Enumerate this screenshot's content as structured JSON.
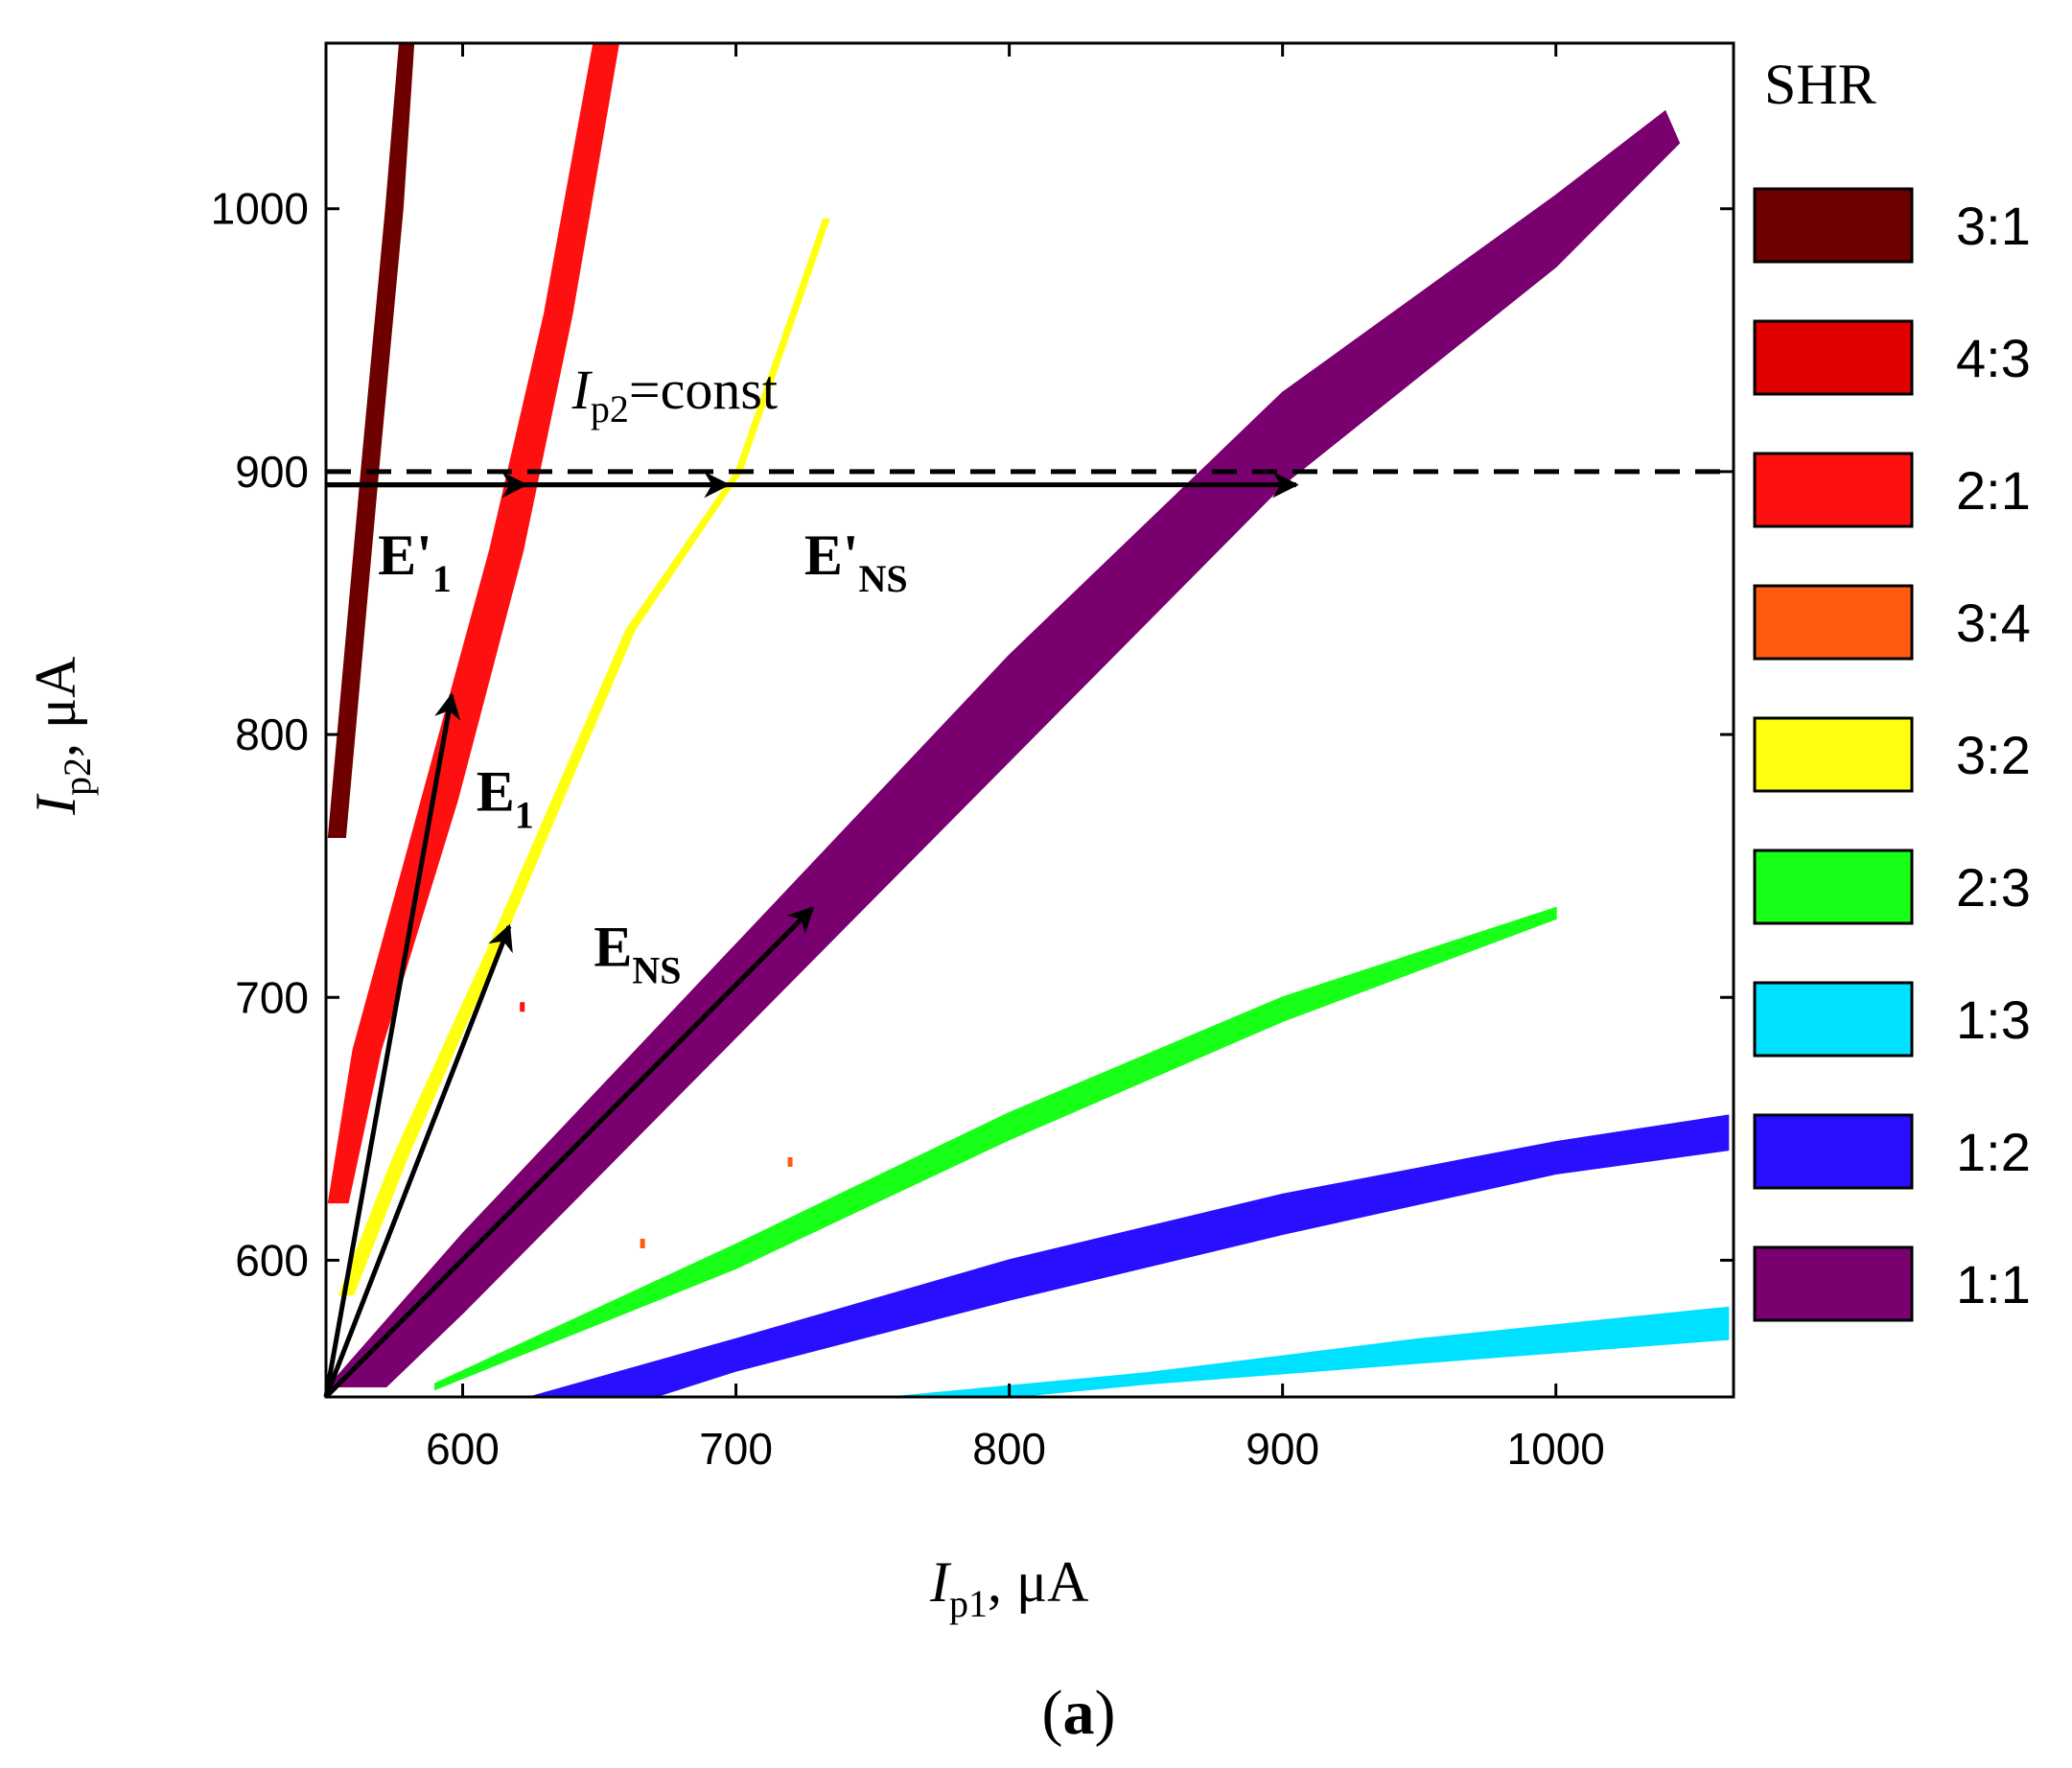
{
  "chart_data": {
    "type": "heatmap",
    "title": "",
    "panel_label": {
      "open": "(",
      "letter": "a",
      "close": ")"
    },
    "xlabel": {
      "var": "I",
      "sub": "p1",
      "unit": ", μA"
    },
    "ylabel": {
      "var": "I",
      "sub": "p2",
      "unit": ", μA"
    },
    "xlim": [
      550,
      1065
    ],
    "ylim": [
      548,
      1063
    ],
    "xticks": [
      600,
      700,
      800,
      900,
      1000
    ],
    "yticks": [
      600,
      700,
      800,
      900,
      1000
    ],
    "legend": {
      "title": "SHR",
      "position": "right",
      "entries": [
        {
          "label": "3:1",
          "color": "#6e0000"
        },
        {
          "label": "4:3",
          "color": "#e00000"
        },
        {
          "label": "2:1",
          "color": "#ff1010"
        },
        {
          "label": "3:4",
          "color": "#ff5a10"
        },
        {
          "label": "3:2",
          "color": "#ffff10"
        },
        {
          "label": "2:3",
          "color": "#18ff18"
        },
        {
          "label": "1:3",
          "color": "#00e0ff"
        },
        {
          "label": "1:2",
          "color": "#2810ff"
        },
        {
          "label": "1:1",
          "color": "#7a0070"
        }
      ]
    },
    "regions": [
      {
        "ratio": "3:1",
        "color": "#6e0000",
        "upper": [
          [
            551,
            761
          ],
          [
            563,
            900
          ],
          [
            572,
            1000
          ],
          [
            577,
            1063
          ]
        ],
        "lower": [
          [
            582,
            1063
          ],
          [
            578,
            1000
          ],
          [
            569,
            900
          ],
          [
            557,
            761
          ]
        ]
      },
      {
        "ratio": "2:1",
        "color": "#ff1010",
        "upper": [
          [
            551,
            622
          ],
          [
            560,
            680
          ],
          [
            585,
            775
          ],
          [
            610,
            870
          ],
          [
            630,
            960
          ],
          [
            648,
            1063
          ]
        ],
        "lower": [
          [
            657,
            1063
          ],
          [
            640,
            960
          ],
          [
            622,
            870
          ],
          [
            598,
            775
          ],
          [
            570,
            680
          ],
          [
            558,
            622
          ]
        ]
      },
      {
        "ratio": "3:2",
        "color": "#ffff10",
        "upper": [
          [
            555,
            587
          ],
          [
            575,
            640
          ],
          [
            610,
            720
          ],
          [
            660,
            840
          ],
          [
            700,
            900
          ],
          [
            732,
            996
          ]
        ],
        "lower": [
          [
            734,
            996
          ],
          [
            702,
            900
          ],
          [
            663,
            840
          ],
          [
            614,
            720
          ],
          [
            580,
            640
          ],
          [
            560,
            587
          ]
        ]
      },
      {
        "ratio": "1:1",
        "color": "#7a0070",
        "upper": [
          [
            551,
            552
          ],
          [
            600,
            610
          ],
          [
            700,
            720
          ],
          [
            800,
            830
          ],
          [
            900,
            930
          ],
          [
            1000,
            1005
          ],
          [
            1040,
            1037
          ]
        ],
        "lower": [
          [
            1045,
            1025
          ],
          [
            1000,
            978
          ],
          [
            900,
            895
          ],
          [
            800,
            790
          ],
          [
            700,
            685
          ],
          [
            600,
            580
          ],
          [
            572,
            552
          ]
        ]
      },
      {
        "ratio": "2:3",
        "color": "#18ff18",
        "upper": [
          [
            590,
            553
          ],
          [
            700,
            606
          ],
          [
            800,
            656
          ],
          [
            900,
            700
          ],
          [
            1000,
            734
          ]
        ],
        "lower": [
          [
            1000,
            730
          ],
          [
            900,
            691
          ],
          [
            800,
            646
          ],
          [
            700,
            597
          ],
          [
            590,
            551
          ]
        ]
      },
      {
        "ratio": "1:2",
        "color": "#2810ff",
        "upper": [
          [
            625,
            548
          ],
          [
            700,
            570
          ],
          [
            800,
            600
          ],
          [
            900,
            625
          ],
          [
            1000,
            645
          ],
          [
            1063,
            655
          ]
        ],
        "lower": [
          [
            1063,
            642
          ],
          [
            1000,
            633
          ],
          [
            900,
            610
          ],
          [
            800,
            585
          ],
          [
            700,
            558
          ],
          [
            670,
            548
          ]
        ]
      },
      {
        "ratio": "1:3",
        "color": "#00e0ff",
        "upper": [
          [
            758,
            548
          ],
          [
            850,
            557
          ],
          [
            950,
            570
          ],
          [
            1063,
            582
          ]
        ],
        "lower": [
          [
            1063,
            570
          ],
          [
            950,
            561
          ],
          [
            850,
            553
          ],
          [
            800,
            548
          ]
        ]
      }
    ],
    "stray_points": [
      {
        "x": 622,
        "y": 696,
        "color": "#ff1010"
      },
      {
        "x": 720,
        "y": 637,
        "color": "#ff5a10"
      },
      {
        "x": 666,
        "y": 606,
        "color": "#ff5a10"
      }
    ],
    "reference_line": {
      "y": 900,
      "label_var": "I",
      "label_sub": "p2",
      "label_rest": "=const",
      "label_x": 640,
      "label_y": 924
    },
    "arrows": [
      {
        "from": [
          550,
          548
        ],
        "to": [
          596,
          815
        ]
      },
      {
        "from": [
          550,
          548
        ],
        "to": [
          617,
          727
        ]
      },
      {
        "from": [
          550,
          548
        ],
        "to": [
          728,
          734
        ]
      },
      {
        "from": [
          550,
          895
        ],
        "to": [
          623,
          895
        ]
      },
      {
        "from": [
          550,
          895
        ],
        "to": [
          697,
          895
        ]
      },
      {
        "from": [
          550,
          895
        ],
        "to": [
          905,
          895
        ]
      }
    ],
    "annotations": [
      {
        "main": "E'",
        "sub": "1",
        "x": 569,
        "y": 861
      },
      {
        "main": "E",
        "sub": "1",
        "x": 605,
        "y": 771
      },
      {
        "main": "E",
        "sub": "NS",
        "x": 648,
        "y": 712
      },
      {
        "main": "E'",
        "sub": "NS",
        "x": 725,
        "y": 861
      }
    ]
  }
}
